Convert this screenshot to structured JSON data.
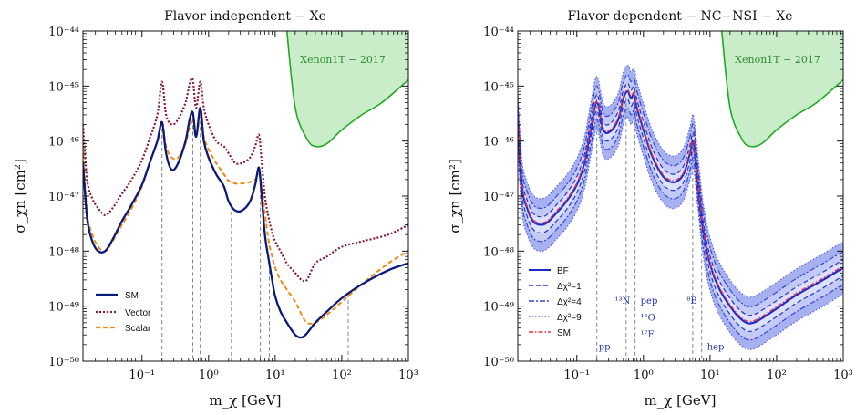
{
  "colors": {
    "sm": "#0a1a7a",
    "vector": "#8b1a3a",
    "scalar": "#f08a10",
    "bf": "#1a2acc",
    "band1": "#2233cc",
    "band4": "#3344dd",
    "band9": "#5566ee",
    "smdash": "#ee3344",
    "xenon_fill": "#c9ecc9",
    "xenon_line": "#22aa22",
    "guide": "#777777"
  },
  "chart_data": [
    {
      "type": "line",
      "title": "Flavor independent − Xe",
      "xlabel": "m_χ [GeV]",
      "ylabel": "σ_χn [cm²]",
      "x_scale": "log",
      "y_scale": "log",
      "xlim": [
        0.013,
        1000
      ],
      "ylim": [
        1e-50,
        1e-44
      ],
      "x_ticks": [
        "10⁻¹",
        "10⁰",
        "10¹",
        "10²",
        "10³"
      ],
      "y_ticks": [
        "10⁻⁵⁰",
        "10⁻⁴⁹",
        "10⁻⁴⁸",
        "10⁻⁴⁷",
        "10⁻⁴⁶",
        "10⁻⁴⁵",
        "10⁻⁴⁴"
      ],
      "legend_position": "bottom-left",
      "exclusion_label": "Xenon1T − 2017",
      "exclusion": [
        [
          15,
          1e-44
        ],
        [
          20,
          4e-46
        ],
        [
          30,
          1.1e-46
        ],
        [
          40,
          8e-47
        ],
        [
          60,
          9e-47
        ],
        [
          100,
          1.6e-46
        ],
        [
          200,
          3e-46
        ],
        [
          400,
          5e-46
        ],
        [
          1000,
          1.3e-45
        ]
      ],
      "guides": [
        0.2,
        0.58,
        0.75,
        2.2,
        6.0,
        8.2,
        125
      ],
      "series": [
        {
          "name": "SM",
          "key": "sm",
          "x": [
            0.013,
            0.015,
            0.018,
            0.022,
            0.028,
            0.036,
            0.05,
            0.07,
            0.1,
            0.13,
            0.17,
            0.2,
            0.23,
            0.28,
            0.35,
            0.45,
            0.52,
            0.58,
            0.65,
            0.75,
            0.85,
            1.0,
            1.3,
            1.7,
            2.0,
            2.5,
            3.2,
            4.2,
            5.0,
            5.7,
            6.2,
            7.0,
            8.0,
            9.0,
            10,
            12,
            15,
            20,
            25,
            30,
            40,
            60,
            100,
            200,
            500,
            1000
          ],
          "y": [
            4e-47,
            4e-48,
            1.5e-48,
            1e-48,
            1e-48,
            1.6e-48,
            3.5e-48,
            7e-48,
            1.6e-47,
            4e-47,
            1e-46,
            2.2e-46,
            6e-47,
            3e-47,
            4e-47,
            1e-46,
            2.5e-46,
            3.3e-46,
            1.2e-46,
            4e-46,
            1e-46,
            5e-47,
            2.5e-47,
            1.5e-47,
            8e-48,
            5.5e-48,
            5.5e-48,
            8e-48,
            1.6e-47,
            3.3e-47,
            1.2e-47,
            2e-48,
            7e-49,
            3e-49,
            1.5e-49,
            8e-50,
            5e-50,
            3e-50,
            2.7e-50,
            3.2e-50,
            5e-50,
            8e-50,
            1.4e-49,
            2.5e-49,
            4.5e-49,
            6e-49
          ]
        },
        {
          "name": "Vector",
          "key": "vector",
          "x": [
            0.013,
            0.015,
            0.018,
            0.022,
            0.028,
            0.036,
            0.05,
            0.07,
            0.1,
            0.13,
            0.17,
            0.2,
            0.23,
            0.28,
            0.35,
            0.45,
            0.52,
            0.58,
            0.65,
            0.75,
            0.85,
            1.0,
            1.3,
            1.7,
            2.0,
            2.5,
            3.2,
            4.2,
            5.0,
            5.7,
            6.2,
            7.0,
            8.0,
            9.0,
            10,
            12,
            15,
            20,
            25,
            30,
            40,
            60,
            100,
            200,
            500,
            1000
          ],
          "y": [
            2e-46,
            2e-47,
            9e-48,
            6e-48,
            4.5e-48,
            6e-48,
            1.1e-47,
            2e-47,
            4.5e-47,
            1.1e-46,
            3e-46,
            1.2e-45,
            3e-46,
            2e-46,
            2.5e-46,
            5e-46,
            1.1e-45,
            1.3e-45,
            4e-46,
            1.2e-45,
            4e-46,
            2e-46,
            1e-46,
            8e-47,
            6e-47,
            4e-47,
            4e-47,
            5e-47,
            8e-47,
            1.3e-46,
            5e-47,
            1e-47,
            4e-48,
            2.2e-48,
            1.5e-48,
            1e-48,
            6e-49,
            4e-49,
            3e-49,
            3e-49,
            6e-49,
            8e-49,
            1.2e-48,
            1.5e-48,
            2e-48,
            3e-48
          ]
        },
        {
          "name": "Scalar",
          "key": "scalar",
          "x": [
            0.013,
            0.015,
            0.018,
            0.022,
            0.028,
            0.036,
            0.05,
            0.07,
            0.1,
            0.13,
            0.17,
            0.2,
            0.23,
            0.28,
            0.35,
            0.45,
            0.52,
            0.58,
            0.65,
            0.75,
            0.85,
            1.0,
            1.3,
            1.7,
            2.0,
            2.5,
            3.2,
            4.2,
            5.0,
            5.7,
            6.2,
            7.0,
            8.0,
            9.0,
            10,
            12,
            15,
            20,
            25,
            30,
            40,
            60,
            100,
            200,
            500,
            1000
          ],
          "y": [
            8e-47,
            5e-48,
            2e-48,
            1.2e-48,
            1e-48,
            1.5e-48,
            3e-48,
            6e-48,
            1.5e-47,
            4e-47,
            1e-46,
            2.3e-46,
            8e-47,
            5e-47,
            5e-47,
            9e-47,
            1.8e-46,
            2.2e-46,
            1.2e-46,
            2.8e-46,
            1.2e-46,
            7e-47,
            4e-47,
            2.5e-47,
            1.9e-47,
            1.7e-47,
            1.7e-47,
            1.8e-47,
            2e-47,
            2.5e-47,
            1.6e-47,
            5e-48,
            1.5e-48,
            8e-49,
            5e-49,
            3e-49,
            2e-49,
            1.2e-49,
            7e-50,
            5e-50,
            5e-50,
            7e-50,
            1.2e-49,
            2.5e-49,
            6e-49,
            1e-48
          ]
        }
      ]
    },
    {
      "type": "line",
      "title": "Flavor dependent − NC−NSI − Xe",
      "xlabel": "m_χ [GeV]",
      "ylabel": "σ_χn [cm²]",
      "x_scale": "log",
      "y_scale": "log",
      "xlim": [
        0.013,
        1000
      ],
      "ylim": [
        1e-50,
        1e-44
      ],
      "x_ticks": [
        "10⁻¹",
        "10⁰",
        "10¹",
        "10²",
        "10³"
      ],
      "y_ticks": [
        "10⁻⁵⁰",
        "10⁻⁴⁹",
        "10⁻⁴⁸",
        "10⁻⁴⁷",
        "10⁻⁴⁶",
        "10⁻⁴⁵",
        "10⁻⁴⁴"
      ],
      "legend_position": "bottom-left",
      "exclusion_label": "Xenon1T − 2017",
      "exclusion": [
        [
          15,
          1e-44
        ],
        [
          20,
          4e-46
        ],
        [
          30,
          1.1e-46
        ],
        [
          40,
          8e-47
        ],
        [
          60,
          9e-47
        ],
        [
          100,
          1.6e-46
        ],
        [
          200,
          3e-46
        ],
        [
          400,
          5e-46
        ],
        [
          1000,
          1.3e-45
        ]
      ],
      "guides": [
        0.2,
        0.55,
        0.75,
        5.5,
        7.5
      ],
      "annotations": [
        {
          "text": "pp",
          "x": 0.2,
          "y": 1.6e-50
        },
        {
          "text": "¹³N",
          "x": 0.35,
          "y": 1.1e-49
        },
        {
          "text": "pep",
          "x": 0.85,
          "y": 1.1e-49
        },
        {
          "text": "¹⁵O",
          "x": 0.85,
          "y": 5.5e-50
        },
        {
          "text": "¹⁷F",
          "x": 0.85,
          "y": 2.7e-50
        },
        {
          "text": "⁸B",
          "x": 4.2,
          "y": 1.1e-49
        },
        {
          "text": "hep",
          "x": 8.5,
          "y": 1.6e-50
        }
      ],
      "bf": {
        "x": [
          0.013,
          0.015,
          0.018,
          0.022,
          0.028,
          0.036,
          0.05,
          0.07,
          0.1,
          0.13,
          0.16,
          0.2,
          0.25,
          0.32,
          0.42,
          0.5,
          0.58,
          0.65,
          0.72,
          0.8,
          1.0,
          1.3,
          1.7,
          2.2,
          3.0,
          4.0,
          5.0,
          5.6,
          6.3,
          7.5,
          9.0,
          11,
          14,
          18,
          25,
          35,
          45,
          60,
          100,
          200,
          500,
          1000
        ],
        "y": [
          2.5e-46,
          1.5e-47,
          6e-48,
          3.5e-48,
          3e-48,
          3.3e-48,
          5e-48,
          8e-48,
          1.6e-47,
          4e-47,
          1.5e-46,
          5e-46,
          1.6e-46,
          1.5e-46,
          2.5e-46,
          6e-46,
          8e-46,
          6e-46,
          7e-46,
          4e-46,
          1.6e-46,
          6e-47,
          3e-47,
          2e-47,
          1.8e-47,
          2.5e-47,
          6e-47,
          1e-46,
          3e-47,
          4e-48,
          1e-48,
          4e-49,
          2e-49,
          1.2e-49,
          7e-50,
          5e-50,
          5e-50,
          6e-50,
          9e-50,
          1.6e-49,
          3e-49,
          5e-49
        ]
      },
      "band_factors": [
        1.4,
        2.0,
        3.0
      ],
      "series": [
        {
          "name": "BF",
          "key": "bf",
          "style": "solid"
        },
        {
          "name": "Δχ²=1",
          "key": "band1",
          "style": "dashed"
        },
        {
          "name": "Δχ²=4",
          "key": "band4",
          "style": "dashdot"
        },
        {
          "name": "Δχ²=9",
          "key": "band9",
          "style": "dotted"
        },
        {
          "name": "SM",
          "key": "smdash",
          "style": "dashdot"
        }
      ]
    }
  ]
}
